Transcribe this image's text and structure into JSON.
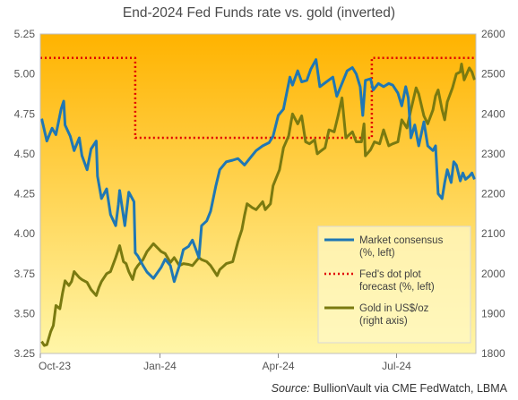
{
  "chart_data": {
    "type": "line",
    "title": "End-2024 Fed Funds rate vs. gold (inverted)",
    "x_tick_labels": [
      "Oct-23",
      "Jan-24",
      "Apr-24",
      "Jul-24"
    ],
    "x_ticks": [
      "2023-10-01",
      "2024-01-01",
      "2024-04-01",
      "2024-07-01"
    ],
    "xlim": [
      "2023-10-01",
      "2024-08-31"
    ],
    "y_left": {
      "lim": [
        3.25,
        5.25
      ],
      "ticks": [
        3.25,
        3.5,
        3.75,
        4.0,
        4.25,
        4.5,
        4.75,
        5.0,
        5.25
      ],
      "tick_labels": [
        "3.25",
        "3.50",
        "3.75",
        "4.00",
        "4.25",
        "4.50",
        "4.75",
        "5.00",
        "5.25"
      ]
    },
    "y_right": {
      "lim": [
        1800,
        2600
      ],
      "ticks": [
        1800,
        1900,
        2000,
        2100,
        2200,
        2300,
        2400,
        2500,
        2600
      ],
      "tick_labels": [
        "1800",
        "1900",
        "2000",
        "2100",
        "2200",
        "2300",
        "2400",
        "2500",
        "2600"
      ]
    },
    "background_gradient": [
      "#ffb300",
      "#fff6a8"
    ],
    "series": [
      {
        "name": "Market consensus\n(%, left)",
        "axis": "left",
        "color": "#1f77b4",
        "points": [
          [
            "2023-10-02",
            4.72
          ],
          [
            "2023-10-06",
            4.58
          ],
          [
            "2023-10-10",
            4.66
          ],
          [
            "2023-10-13",
            4.62
          ],
          [
            "2023-10-17",
            4.78
          ],
          [
            "2023-10-19",
            4.83
          ],
          [
            "2023-10-20",
            4.68
          ],
          [
            "2023-10-24",
            4.61
          ],
          [
            "2023-10-27",
            4.52
          ],
          [
            "2023-10-31",
            4.6
          ],
          [
            "2023-11-02",
            4.49
          ],
          [
            "2023-11-06",
            4.4
          ],
          [
            "2023-11-09",
            4.53
          ],
          [
            "2023-11-13",
            4.58
          ],
          [
            "2023-11-14",
            4.36
          ],
          [
            "2023-11-17",
            4.22
          ],
          [
            "2023-11-21",
            4.28
          ],
          [
            "2023-11-24",
            4.12
          ],
          [
            "2023-11-28",
            4.05
          ],
          [
            "2023-11-30",
            4.18
          ],
          [
            "2023-12-01",
            4.27
          ],
          [
            "2023-12-05",
            4.05
          ],
          [
            "2023-12-08",
            4.26
          ],
          [
            "2023-12-12",
            4.2
          ],
          [
            "2023-12-13",
            3.88
          ],
          [
            "2023-12-15",
            3.86
          ],
          [
            "2023-12-19",
            3.8
          ],
          [
            "2023-12-22",
            3.76
          ],
          [
            "2023-12-27",
            3.72
          ],
          [
            "2024-01-02",
            3.79
          ],
          [
            "2024-01-05",
            3.84
          ],
          [
            "2024-01-09",
            3.8
          ],
          [
            "2024-01-12",
            3.7
          ],
          [
            "2024-01-16",
            3.8
          ],
          [
            "2024-01-19",
            3.9
          ],
          [
            "2024-01-23",
            3.92
          ],
          [
            "2024-01-26",
            3.96
          ],
          [
            "2024-01-31",
            3.85
          ],
          [
            "2024-02-02",
            4.05
          ],
          [
            "2024-02-06",
            4.08
          ],
          [
            "2024-02-09",
            4.14
          ],
          [
            "2024-02-13",
            4.3
          ],
          [
            "2024-02-16",
            4.4
          ],
          [
            "2024-02-21",
            4.45
          ],
          [
            "2024-02-26",
            4.46
          ],
          [
            "2024-03-01",
            4.47
          ],
          [
            "2024-03-06",
            4.43
          ],
          [
            "2024-03-11",
            4.48
          ],
          [
            "2024-03-15",
            4.52
          ],
          [
            "2024-03-20",
            4.55
          ],
          [
            "2024-03-25",
            4.57
          ],
          [
            "2024-03-28",
            4.61
          ],
          [
            "2024-04-01",
            4.74
          ],
          [
            "2024-04-05",
            4.78
          ],
          [
            "2024-04-10",
            4.98
          ],
          [
            "2024-04-12",
            4.93
          ],
          [
            "2024-04-16",
            5.02
          ],
          [
            "2024-04-19",
            4.95
          ],
          [
            "2024-04-23",
            4.96
          ],
          [
            "2024-04-26",
            5.03
          ],
          [
            "2024-04-30",
            5.09
          ],
          [
            "2024-05-03",
            4.92
          ],
          [
            "2024-05-08",
            4.95
          ],
          [
            "2024-05-13",
            4.98
          ],
          [
            "2024-05-16",
            4.86
          ],
          [
            "2024-05-21",
            4.96
          ],
          [
            "2024-05-24",
            5.02
          ],
          [
            "2024-05-28",
            5.04
          ],
          [
            "2024-05-31",
            5.0
          ],
          [
            "2024-06-03",
            4.92
          ],
          [
            "2024-06-05",
            4.74
          ],
          [
            "2024-06-07",
            4.96
          ],
          [
            "2024-06-11",
            4.97
          ],
          [
            "2024-06-13",
            4.9
          ],
          [
            "2024-06-17",
            4.94
          ],
          [
            "2024-06-21",
            4.92
          ],
          [
            "2024-06-25",
            4.94
          ],
          [
            "2024-06-28",
            4.93
          ],
          [
            "2024-07-02",
            4.88
          ],
          [
            "2024-07-05",
            4.8
          ],
          [
            "2024-07-08",
            4.92
          ],
          [
            "2024-07-10",
            4.85
          ],
          [
            "2024-07-12",
            4.6
          ],
          [
            "2024-07-15",
            4.68
          ],
          [
            "2024-07-18",
            4.55
          ],
          [
            "2024-07-22",
            4.7
          ],
          [
            "2024-07-25",
            4.55
          ],
          [
            "2024-07-29",
            4.52
          ],
          [
            "2024-07-31",
            4.55
          ],
          [
            "2024-08-02",
            4.25
          ],
          [
            "2024-08-05",
            4.22
          ],
          [
            "2024-08-07",
            4.32
          ],
          [
            "2024-08-09",
            4.4
          ],
          [
            "2024-08-12",
            4.32
          ],
          [
            "2024-08-14",
            4.45
          ],
          [
            "2024-08-16",
            4.43
          ],
          [
            "2024-08-19",
            4.33
          ],
          [
            "2024-08-21",
            4.38
          ],
          [
            "2024-08-23",
            4.34
          ],
          [
            "2024-08-26",
            4.36
          ],
          [
            "2024-08-28",
            4.38
          ],
          [
            "2024-08-30",
            4.34
          ]
        ]
      },
      {
        "name": "Fed's dot plot\nforecast (%, left)",
        "axis": "left",
        "color": "#e00000",
        "dash": "dotted",
        "points": [
          [
            "2023-10-01",
            5.1
          ],
          [
            "2023-12-13",
            5.1
          ],
          [
            "2023-12-13",
            4.6
          ],
          [
            "2024-06-12",
            4.6
          ],
          [
            "2024-06-12",
            5.1
          ],
          [
            "2024-08-31",
            5.1
          ]
        ]
      },
      {
        "name": "Gold in US$/oz\n(right axis)",
        "axis": "right",
        "color": "#7a7a10",
        "points": [
          [
            "2023-10-02",
            1830
          ],
          [
            "2023-10-04",
            1820
          ],
          [
            "2023-10-06",
            1822
          ],
          [
            "2023-10-09",
            1855
          ],
          [
            "2023-10-11",
            1870
          ],
          [
            "2023-10-13",
            1920
          ],
          [
            "2023-10-16",
            1912
          ],
          [
            "2023-10-18",
            1950
          ],
          [
            "2023-10-20",
            1982
          ],
          [
            "2023-10-23",
            1970
          ],
          [
            "2023-10-25",
            1980
          ],
          [
            "2023-10-27",
            2005
          ],
          [
            "2023-10-31",
            1990
          ],
          [
            "2023-11-02",
            1985
          ],
          [
            "2023-11-06",
            1978
          ],
          [
            "2023-11-09",
            1960
          ],
          [
            "2023-11-13",
            1945
          ],
          [
            "2023-11-15",
            1965
          ],
          [
            "2023-11-17",
            1980
          ],
          [
            "2023-11-21",
            2000
          ],
          [
            "2023-11-24",
            2005
          ],
          [
            "2023-11-28",
            2040
          ],
          [
            "2023-12-01",
            2070
          ],
          [
            "2023-12-04",
            2030
          ],
          [
            "2023-12-06",
            2025
          ],
          [
            "2023-12-08",
            2005
          ],
          [
            "2023-12-11",
            1985
          ],
          [
            "2023-12-13",
            2010
          ],
          [
            "2023-12-15",
            2020
          ],
          [
            "2023-12-19",
            2035
          ],
          [
            "2023-12-22",
            2055
          ],
          [
            "2023-12-27",
            2075
          ],
          [
            "2024-01-02",
            2055
          ],
          [
            "2024-01-05",
            2050
          ],
          [
            "2024-01-09",
            2028
          ],
          [
            "2024-01-12",
            2040
          ],
          [
            "2024-01-16",
            2020
          ],
          [
            "2024-01-19",
            2025
          ],
          [
            "2024-01-23",
            2023
          ],
          [
            "2024-01-26",
            2020
          ],
          [
            "2024-01-31",
            2040
          ],
          [
            "2024-02-02",
            2035
          ],
          [
            "2024-02-06",
            2030
          ],
          [
            "2024-02-09",
            2020
          ],
          [
            "2024-02-14",
            1995
          ],
          [
            "2024-02-16",
            2010
          ],
          [
            "2024-02-21",
            2025
          ],
          [
            "2024-02-26",
            2030
          ],
          [
            "2024-03-01",
            2080
          ],
          [
            "2024-03-04",
            2110
          ],
          [
            "2024-03-06",
            2145
          ],
          [
            "2024-03-08",
            2175
          ],
          [
            "2024-03-12",
            2165
          ],
          [
            "2024-03-15",
            2160
          ],
          [
            "2024-03-20",
            2180
          ],
          [
            "2024-03-22",
            2160
          ],
          [
            "2024-03-26",
            2175
          ],
          [
            "2024-03-28",
            2220
          ],
          [
            "2024-04-02",
            2260
          ],
          [
            "2024-04-05",
            2315
          ],
          [
            "2024-04-09",
            2345
          ],
          [
            "2024-04-12",
            2400
          ],
          [
            "2024-04-16",
            2375
          ],
          [
            "2024-04-19",
            2395
          ],
          [
            "2024-04-22",
            2330
          ],
          [
            "2024-04-25",
            2325
          ],
          [
            "2024-04-29",
            2335
          ],
          [
            "2024-05-01",
            2300
          ],
          [
            "2024-05-03",
            2305
          ],
          [
            "2024-05-07",
            2315
          ],
          [
            "2024-05-10",
            2360
          ],
          [
            "2024-05-14",
            2355
          ],
          [
            "2024-05-17",
            2395
          ],
          [
            "2024-05-20",
            2440
          ],
          [
            "2024-05-23",
            2340
          ],
          [
            "2024-05-28",
            2355
          ],
          [
            "2024-05-31",
            2330
          ],
          [
            "2024-06-04",
            2330
          ],
          [
            "2024-06-06",
            2375
          ],
          [
            "2024-06-07",
            2295
          ],
          [
            "2024-06-11",
            2310
          ],
          [
            "2024-06-14",
            2330
          ],
          [
            "2024-06-18",
            2325
          ],
          [
            "2024-06-21",
            2360
          ],
          [
            "2024-06-25",
            2320
          ],
          [
            "2024-06-28",
            2325
          ],
          [
            "2024-07-02",
            2330
          ],
          [
            "2024-07-05",
            2385
          ],
          [
            "2024-07-09",
            2365
          ],
          [
            "2024-07-12",
            2410
          ],
          [
            "2024-07-16",
            2465
          ],
          [
            "2024-07-18",
            2450
          ],
          [
            "2024-07-22",
            2395
          ],
          [
            "2024-07-25",
            2375
          ],
          [
            "2024-07-29",
            2410
          ],
          [
            "2024-07-31",
            2445
          ],
          [
            "2024-08-02",
            2460
          ],
          [
            "2024-08-05",
            2410
          ],
          [
            "2024-08-07",
            2385
          ],
          [
            "2024-08-09",
            2430
          ],
          [
            "2024-08-13",
            2465
          ],
          [
            "2024-08-16",
            2500
          ],
          [
            "2024-08-19",
            2505
          ],
          [
            "2024-08-20",
            2525
          ],
          [
            "2024-08-22",
            2485
          ],
          [
            "2024-08-26",
            2515
          ],
          [
            "2024-08-28",
            2505
          ],
          [
            "2024-08-30",
            2485
          ]
        ]
      }
    ],
    "legend": {
      "position": "bottom-right",
      "entries": [
        "Market consensus\n(%, left)",
        "Fed's dot plot\nforecast (%, left)",
        "Gold in US$/oz\n(right axis)"
      ]
    },
    "grid": false
  },
  "source": {
    "label": "Source:",
    "text": "BullionVault via CME FedWatch, LBMA"
  }
}
